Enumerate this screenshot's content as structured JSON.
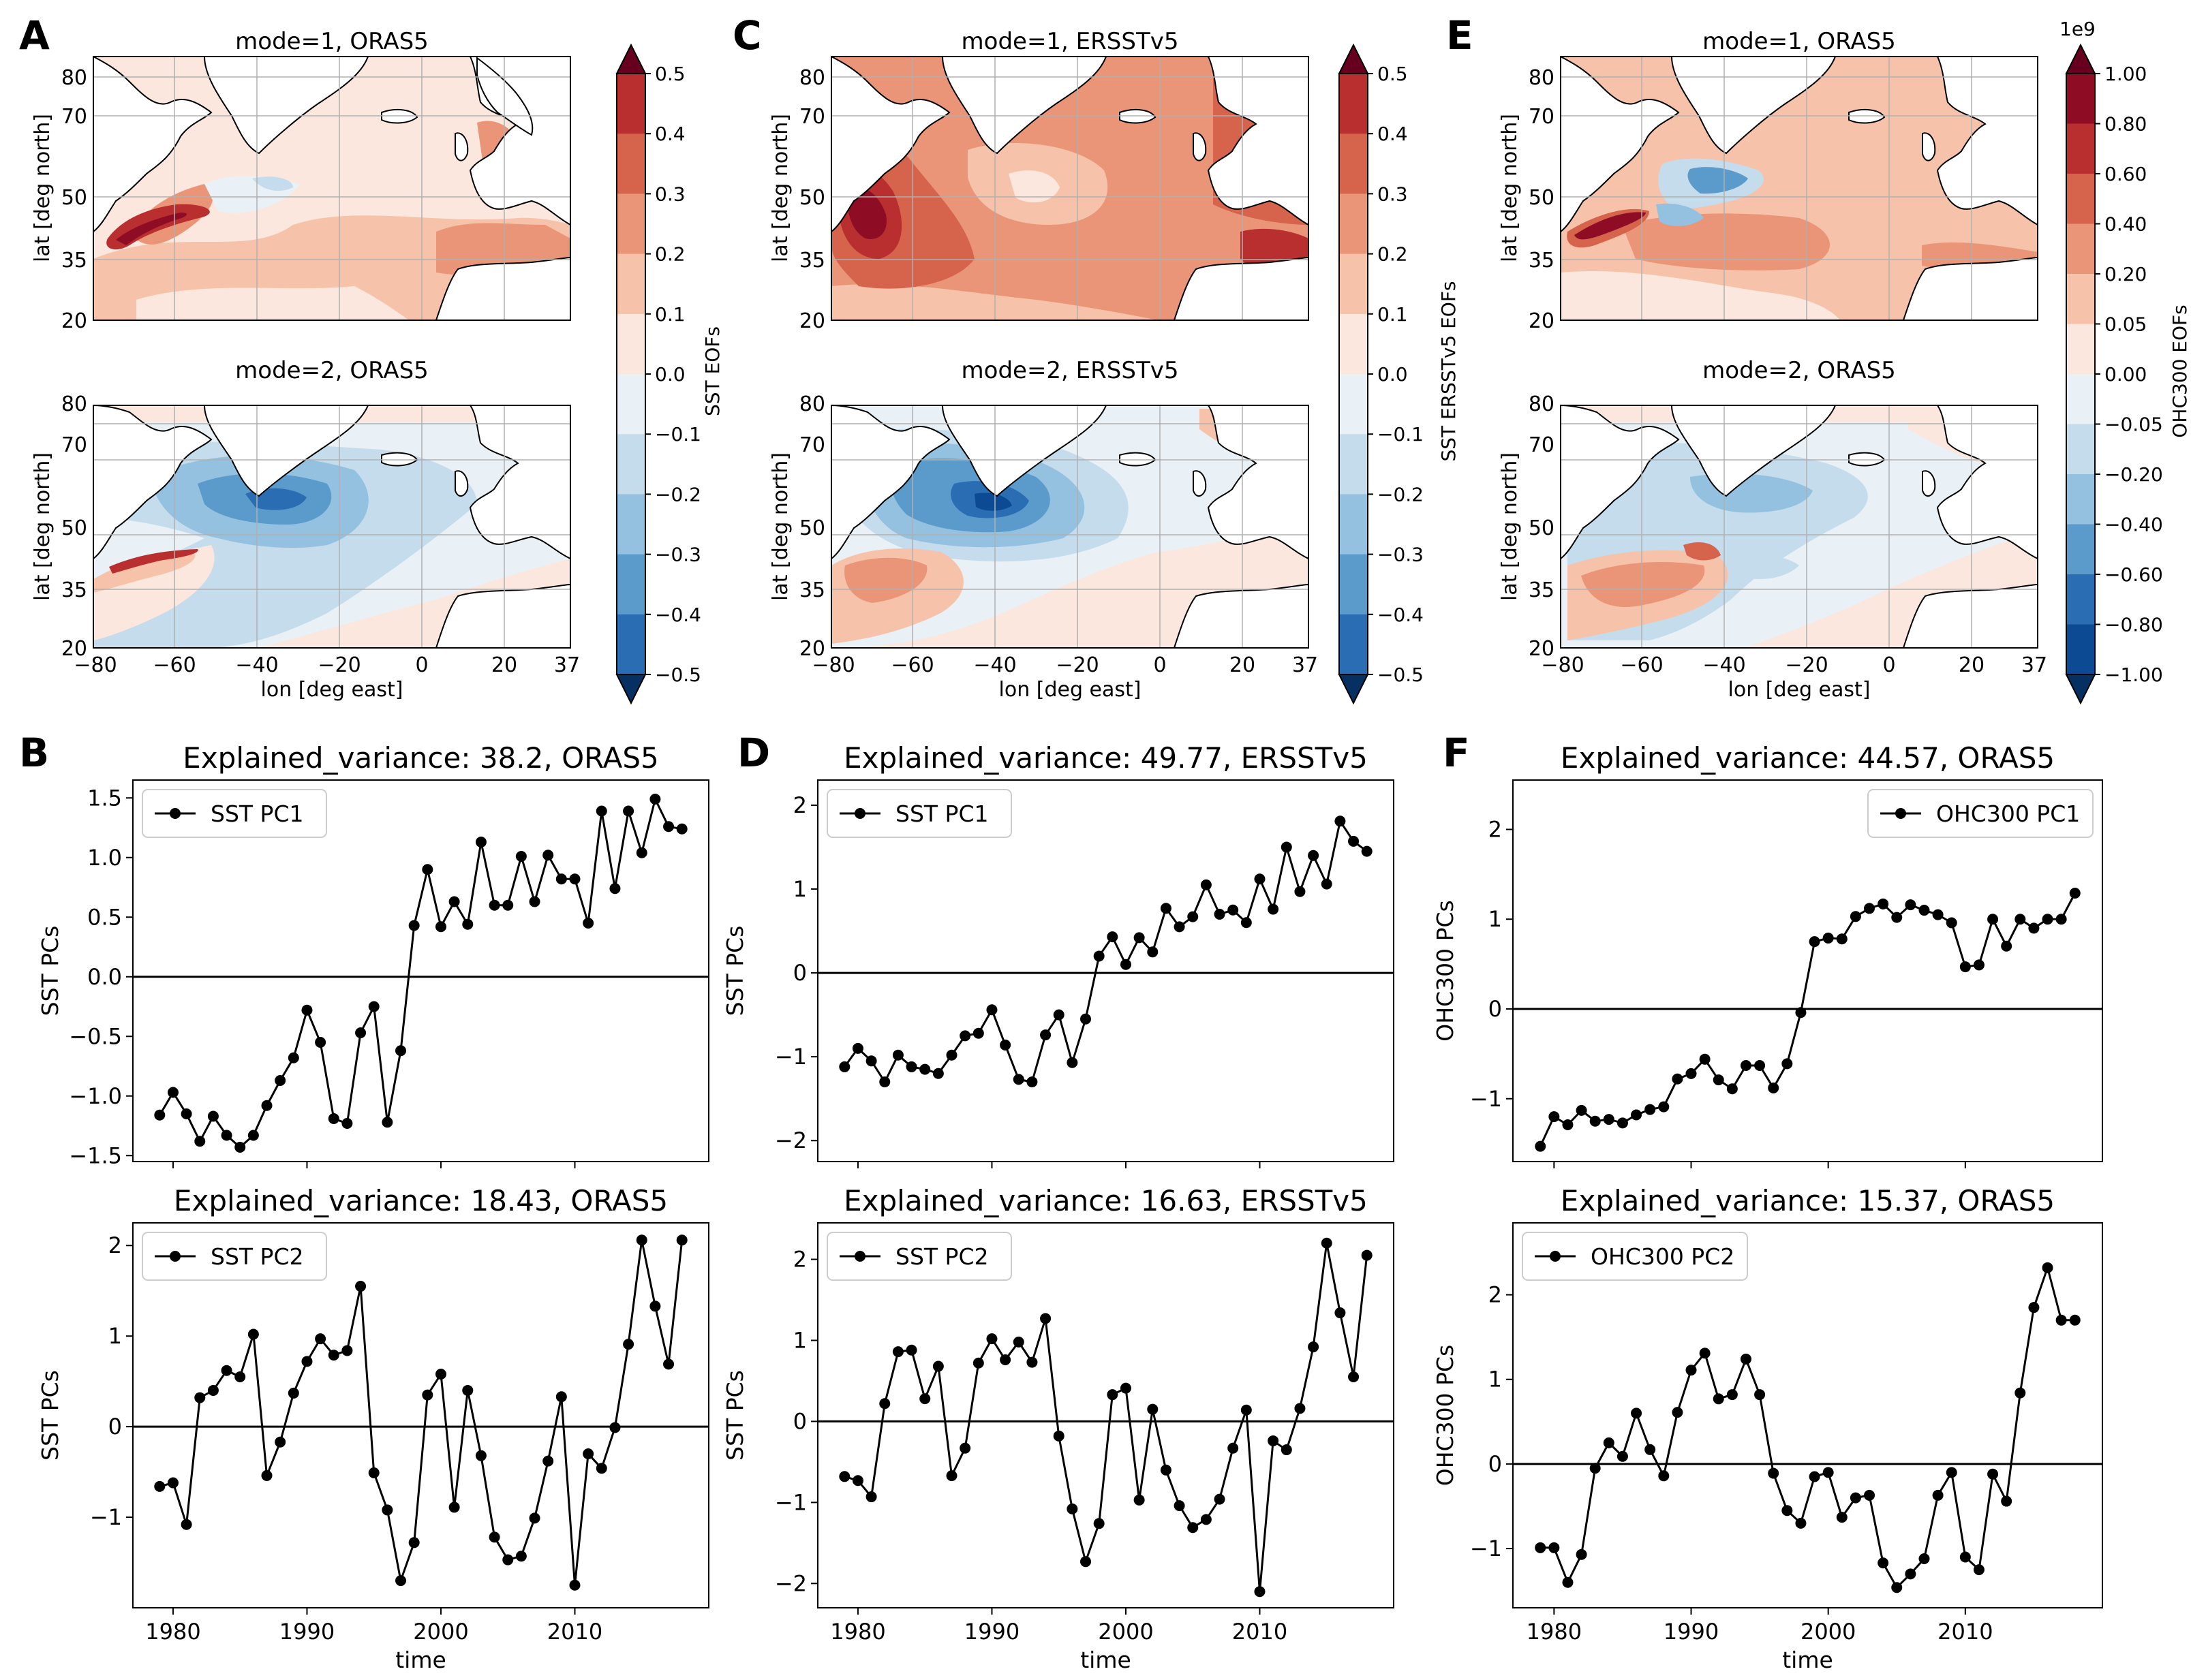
{
  "panel_letters": {
    "A": "A",
    "B": "B",
    "C": "C",
    "D": "D",
    "E": "E",
    "F": "F"
  },
  "colors": {
    "neg": [
      "#0c4a94",
      "#2a6db2",
      "#5b9bcc",
      "#93c1df",
      "#c5dcec",
      "#e9f1f6"
    ],
    "pos": [
      "#fbe7de",
      "#f6c2aa",
      "#ea9577",
      "#d6634c",
      "#b92f2f",
      "#8e0d25"
    ],
    "land": "#ffffff",
    "line": "#000000"
  },
  "maps": {
    "A1": {
      "title": "mode=1, ORAS5",
      "ylabel": "lat [deg north]"
    },
    "A2": {
      "title": "mode=2, ORAS5",
      "ylabel": "lat [deg north]",
      "xlabel": "lon [deg east]"
    },
    "C1": {
      "title": "mode=1, ERSSTv5",
      "ylabel": "lat [deg north]"
    },
    "C2": {
      "title": "mode=2, ERSSTv5",
      "ylabel": "lat [deg north]",
      "xlabel": "lon [deg east]"
    },
    "E1": {
      "title": "mode=1, ORAS5",
      "ylabel": "lat [deg north]"
    },
    "E2": {
      "title": "mode=2, ORAS5",
      "ylabel": "lat [deg north]",
      "xlabel": "lon [deg east]"
    },
    "lat_ticks": [
      "80",
      "70",
      "50",
      "35",
      "20"
    ],
    "lon_ticks": [
      "−80",
      "−60",
      "−40",
      "−20",
      "0",
      "20",
      "37"
    ]
  },
  "colorbars": {
    "A": {
      "label": "SST EOFs",
      "ticks": [
        "0.5",
        "0.4",
        "0.3",
        "0.2",
        "0.1",
        "0.0",
        "−0.1",
        "−0.2",
        "−0.3",
        "−0.4",
        "−0.5"
      ]
    },
    "C": {
      "label": "SST ERSSTv5 EOFs",
      "ticks": [
        "0.5",
        "0.4",
        "0.3",
        "0.2",
        "0.1",
        "0.0",
        "−0.1",
        "−0.2",
        "−0.3",
        "−0.4",
        "−0.5"
      ]
    },
    "E": {
      "label": "OHC300 EOFs",
      "exponent": "1e9",
      "ticks": [
        "1.00",
        "0.80",
        "0.60",
        "0.40",
        "0.20",
        "0.05",
        "0.00",
        "−0.05",
        "−0.20",
        "−0.40",
        "−0.60",
        "−0.80",
        "−1.00"
      ]
    }
  },
  "chart_data": [
    {
      "id": "B1",
      "type": "line",
      "title": "Explained_variance: 38.2, ORAS5",
      "ylabel": "SST PCs",
      "xlabel": "",
      "legend": "SST PC1",
      "legend_loc": "upper left",
      "ylim": [
        -1.55,
        1.65
      ],
      "yticks": [
        -1.5,
        -1.0,
        -0.5,
        0.0,
        0.5,
        1.0,
        1.5
      ],
      "ytick_labels": [
        "−1.5",
        "−1.0",
        "−0.5",
        "0.0",
        "0.5",
        "1.0",
        "1.5"
      ],
      "xlim": [
        1977.0,
        2020.0
      ],
      "xticks": [
        1980,
        1990,
        2000,
        2010
      ],
      "xtick_labels": [
        "",
        "",
        "",
        ""
      ],
      "x": [
        1979,
        1980,
        1981,
        1982,
        1983,
        1984,
        1985,
        1986,
        1987,
        1988,
        1989,
        1990,
        1991,
        1992,
        1993,
        1994,
        1995,
        1996,
        1997,
        1998,
        1999,
        2000,
        2001,
        2002,
        2003,
        2004,
        2005,
        2006,
        2007,
        2008,
        2009,
        2010,
        2011,
        2012,
        2013,
        2014,
        2015,
        2016,
        2017,
        2018
      ],
      "values": [
        -1.16,
        -0.97,
        -1.15,
        -1.38,
        -1.17,
        -1.33,
        -1.43,
        -1.33,
        -1.08,
        -0.87,
        -0.68,
        -0.28,
        -0.55,
        -1.19,
        -1.23,
        -0.47,
        -0.25,
        -1.22,
        -0.62,
        0.43,
        0.9,
        0.42,
        0.63,
        0.44,
        1.13,
        0.6,
        0.6,
        1.01,
        0.63,
        1.02,
        0.82,
        0.82,
        0.45,
        1.39,
        0.74,
        1.39,
        1.04,
        1.49,
        1.26,
        1.24
      ]
    },
    {
      "id": "B2",
      "type": "line",
      "title": "Explained_variance: 18.43, ORAS5",
      "ylabel": "SST PCs",
      "xlabel": "time",
      "legend": "SST PC2",
      "legend_loc": "upper left",
      "ylim": [
        -2.0,
        2.25
      ],
      "yticks": [
        -1,
        0,
        1,
        2
      ],
      "ytick_labels": [
        "−1",
        "0",
        "1",
        "2"
      ],
      "xlim": [
        1977.0,
        2020.0
      ],
      "xticks": [
        1980,
        1990,
        2000,
        2010
      ],
      "xtick_labels": [
        "1980",
        "1990",
        "2000",
        "2010"
      ],
      "x": [
        1979,
        1980,
        1981,
        1982,
        1983,
        1984,
        1985,
        1986,
        1987,
        1988,
        1989,
        1990,
        1991,
        1992,
        1993,
        1994,
        1995,
        1996,
        1997,
        1998,
        1999,
        2000,
        2001,
        2002,
        2003,
        2004,
        2005,
        2006,
        2007,
        2008,
        2009,
        2010,
        2011,
        2012,
        2013,
        2014,
        2015,
        2016,
        2017,
        2018
      ],
      "values": [
        -0.66,
        -0.62,
        -1.08,
        0.32,
        0.4,
        0.62,
        0.55,
        1.02,
        -0.54,
        -0.17,
        0.37,
        0.72,
        0.97,
        0.79,
        0.84,
        1.55,
        -0.51,
        -0.92,
        -1.7,
        -1.28,
        0.35,
        0.58,
        -0.89,
        0.4,
        -0.32,
        -1.22,
        -1.47,
        -1.43,
        -1.01,
        -0.38,
        0.33,
        -1.75,
        -0.3,
        -0.46,
        -0.01,
        0.91,
        2.06,
        1.33,
        0.69,
        2.06
      ]
    },
    {
      "id": "D1",
      "type": "line",
      "title": "Explained_variance: 49.77, ERSSTv5",
      "ylabel": "SST PCs",
      "xlabel": "",
      "legend": "SST PC1",
      "legend_loc": "upper left",
      "ylim": [
        -2.25,
        2.3
      ],
      "yticks": [
        -2,
        -1,
        0,
        1,
        2
      ],
      "ytick_labels": [
        "−2",
        "−1",
        "0",
        "1",
        "2"
      ],
      "xlim": [
        1977.0,
        2020.0
      ],
      "xticks": [
        1980,
        1990,
        2000,
        2010
      ],
      "xtick_labels": [
        "",
        "",
        "",
        ""
      ],
      "x": [
        1979,
        1980,
        1981,
        1982,
        1983,
        1984,
        1985,
        1986,
        1987,
        1988,
        1989,
        1990,
        1991,
        1992,
        1993,
        1994,
        1995,
        1996,
        1997,
        1998,
        1999,
        2000,
        2001,
        2002,
        2003,
        2004,
        2005,
        2006,
        2007,
        2008,
        2009,
        2010,
        2011,
        2012,
        2013,
        2014,
        2015,
        2016,
        2017,
        2018
      ],
      "values": [
        -1.12,
        -0.9,
        -1.05,
        -1.3,
        -0.98,
        -1.12,
        -1.15,
        -1.2,
        -0.98,
        -0.75,
        -0.72,
        -0.44,
        -0.86,
        -1.27,
        -1.3,
        -0.74,
        -0.5,
        -1.07,
        -0.55,
        0.2,
        0.43,
        0.1,
        0.42,
        0.25,
        0.77,
        0.55,
        0.67,
        1.05,
        0.7,
        0.75,
        0.6,
        1.12,
        0.76,
        1.5,
        0.97,
        1.4,
        1.06,
        1.81,
        1.57,
        1.45
      ]
    },
    {
      "id": "D2",
      "type": "line",
      "title": "Explained_variance: 16.63, ERSSTv5",
      "ylabel": "SST PCs",
      "xlabel": "time",
      "legend": "SST PC2",
      "legend_loc": "upper left",
      "ylim": [
        -2.3,
        2.45
      ],
      "yticks": [
        -2,
        -1,
        0,
        1,
        2
      ],
      "ytick_labels": [
        "−2",
        "−1",
        "0",
        "1",
        "2"
      ],
      "xlim": [
        1977.0,
        2020.0
      ],
      "xticks": [
        1980,
        1990,
        2000,
        2010
      ],
      "xtick_labels": [
        "1980",
        "1990",
        "2000",
        "2010"
      ],
      "x": [
        1979,
        1980,
        1981,
        1982,
        1983,
        1984,
        1985,
        1986,
        1987,
        1988,
        1989,
        1990,
        1991,
        1992,
        1993,
        1994,
        1995,
        1996,
        1997,
        1998,
        1999,
        2000,
        2001,
        2002,
        2003,
        2004,
        2005,
        2006,
        2007,
        2008,
        2009,
        2010,
        2011,
        2012,
        2013,
        2014,
        2015,
        2016,
        2017,
        2018
      ],
      "values": [
        -0.68,
        -0.73,
        -0.93,
        0.22,
        0.86,
        0.88,
        0.28,
        0.68,
        -0.67,
        -0.33,
        0.72,
        1.02,
        0.76,
        0.98,
        0.73,
        1.27,
        -0.18,
        -1.08,
        -1.73,
        -1.26,
        0.33,
        0.41,
        -0.97,
        0.15,
        -0.6,
        -1.04,
        -1.31,
        -1.21,
        -0.96,
        -0.33,
        0.14,
        -2.1,
        -0.24,
        -0.35,
        0.16,
        0.92,
        2.2,
        1.34,
        0.55,
        2.05
      ]
    },
    {
      "id": "F1",
      "type": "line",
      "title": "Explained_variance: 44.57, ORAS5",
      "ylabel": "OHC300 PCs",
      "xlabel": "",
      "legend": "OHC300 PC1",
      "legend_loc": "upper right",
      "ylim": [
        -1.7,
        2.55
      ],
      "yticks": [
        -1,
        0,
        1,
        2
      ],
      "ytick_labels": [
        "−1",
        "0",
        "1",
        "2"
      ],
      "xlim": [
        1977.0,
        2020.0
      ],
      "xticks": [
        1980,
        1990,
        2000,
        2010
      ],
      "xtick_labels": [
        "",
        "",
        "",
        ""
      ],
      "x": [
        1979,
        1980,
        1981,
        1982,
        1983,
        1984,
        1985,
        1986,
        1987,
        1988,
        1989,
        1990,
        1991,
        1992,
        1993,
        1994,
        1995,
        1996,
        1997,
        1998,
        1999,
        2000,
        2001,
        2002,
        2003,
        2004,
        2005,
        2006,
        2007,
        2008,
        2009,
        2010,
        2011,
        2012,
        2013,
        2014,
        2015,
        2016,
        2017,
        2018
      ],
      "values": [
        -1.53,
        -1.2,
        -1.29,
        -1.13,
        -1.25,
        -1.23,
        -1.27,
        -1.18,
        -1.12,
        -1.09,
        -0.78,
        -0.72,
        -0.56,
        -0.79,
        -0.89,
        -0.63,
        -0.63,
        -0.88,
        -0.61,
        -0.04,
        0.75,
        0.79,
        0.78,
        1.03,
        1.12,
        1.17,
        1.02,
        1.16,
        1.1,
        1.05,
        0.96,
        0.47,
        0.49,
        1.0,
        0.7,
        1.0,
        0.9,
        1.0,
        1.0,
        1.29
      ]
    },
    {
      "id": "F2",
      "type": "line",
      "title": "Explained_variance: 15.37, ORAS5",
      "ylabel": "OHC300 PCs",
      "xlabel": "time",
      "legend": "OHC300 PC2",
      "legend_loc": "upper left",
      "ylim": [
        -1.7,
        2.85
      ],
      "yticks": [
        -1,
        0,
        1,
        2
      ],
      "ytick_labels": [
        "−1",
        "0",
        "1",
        "2"
      ],
      "xlim": [
        1977.0,
        2020.0
      ],
      "xticks": [
        1980,
        1990,
        2000,
        2010
      ],
      "xtick_labels": [
        "1980",
        "1990",
        "2000",
        "2010"
      ],
      "x": [
        1979,
        1980,
        1981,
        1982,
        1983,
        1984,
        1985,
        1986,
        1987,
        1988,
        1989,
        1990,
        1991,
        1992,
        1993,
        1994,
        1995,
        1996,
        1997,
        1998,
        1999,
        2000,
        2001,
        2002,
        2003,
        2004,
        2005,
        2006,
        2007,
        2008,
        2009,
        2010,
        2011,
        2012,
        2013,
        2014,
        2015,
        2016,
        2017,
        2018
      ],
      "values": [
        -0.99,
        -0.99,
        -1.4,
        -1.07,
        -0.05,
        0.25,
        0.09,
        0.6,
        0.17,
        -0.14,
        0.61,
        1.11,
        1.31,
        0.77,
        0.82,
        1.24,
        0.82,
        -0.11,
        -0.55,
        -0.7,
        -0.15,
        -0.1,
        -0.63,
        -0.4,
        -0.37,
        -1.17,
        -1.46,
        -1.3,
        -1.12,
        -0.37,
        -0.1,
        -1.1,
        -1.25,
        -0.12,
        -0.44,
        0.84,
        1.85,
        2.32,
        1.7,
        1.7
      ]
    }
  ]
}
